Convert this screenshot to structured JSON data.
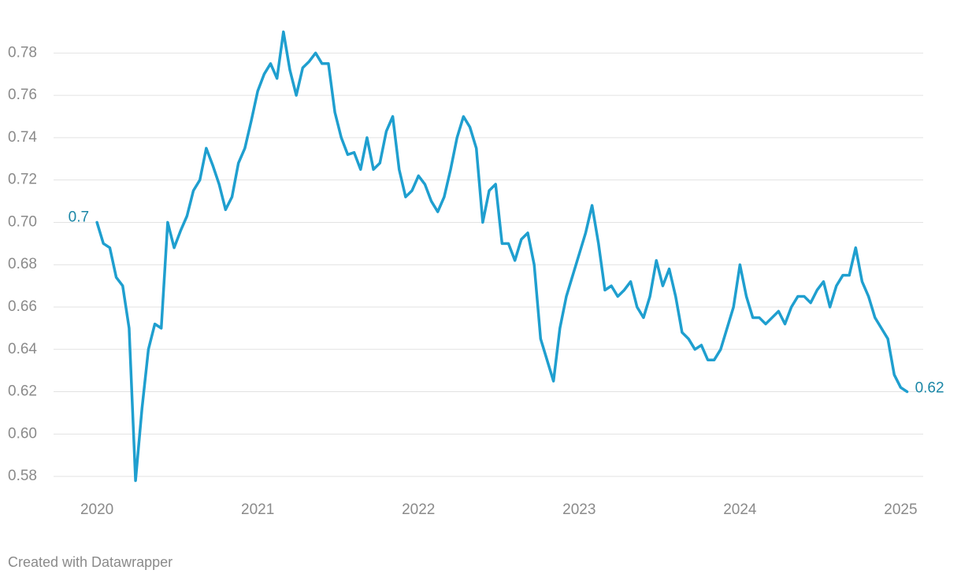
{
  "chart_data": {
    "type": "line",
    "x": [
      2020.0,
      2020.04,
      2020.08,
      2020.12,
      2020.16,
      2020.2,
      2020.24,
      2020.28,
      2020.32,
      2020.36,
      2020.4,
      2020.44,
      2020.48,
      2020.52,
      2020.56,
      2020.6,
      2020.64,
      2020.68,
      2020.72,
      2020.76,
      2020.8,
      2020.84,
      2020.88,
      2020.92,
      2020.96,
      2021.0,
      2021.04,
      2021.08,
      2021.12,
      2021.16,
      2021.2,
      2021.24,
      2021.28,
      2021.32,
      2021.36,
      2021.4,
      2021.44,
      2021.48,
      2021.52,
      2021.56,
      2021.6,
      2021.64,
      2021.68,
      2021.72,
      2021.76,
      2021.8,
      2021.84,
      2021.88,
      2021.92,
      2021.96,
      2022.0,
      2022.04,
      2022.08,
      2022.12,
      2022.16,
      2022.2,
      2022.24,
      2022.28,
      2022.32,
      2022.36,
      2022.4,
      2022.44,
      2022.48,
      2022.52,
      2022.56,
      2022.6,
      2022.64,
      2022.68,
      2022.72,
      2022.76,
      2022.8,
      2022.84,
      2022.88,
      2022.92,
      2022.96,
      2023.0,
      2023.04,
      2023.08,
      2023.12,
      2023.16,
      2023.2,
      2023.24,
      2023.28,
      2023.32,
      2023.36,
      2023.4,
      2023.44,
      2023.48,
      2023.52,
      2023.56,
      2023.6,
      2023.64,
      2023.68,
      2023.72,
      2023.76,
      2023.8,
      2023.84,
      2023.88,
      2023.92,
      2023.96,
      2024.0,
      2024.04,
      2024.08,
      2024.12,
      2024.16,
      2024.2,
      2024.24,
      2024.28,
      2024.32,
      2024.36,
      2024.4,
      2024.44,
      2024.48,
      2024.52,
      2024.56,
      2024.6,
      2024.64,
      2024.68,
      2024.72,
      2024.76,
      2024.8,
      2024.84,
      2024.88,
      2024.92,
      2024.96,
      2025.0,
      2025.04
    ],
    "series": [
      {
        "color": "#1f9fcf",
        "label_color": "#1a86a6",
        "values": [
          0.7,
          0.69,
          0.688,
          0.674,
          0.67,
          0.65,
          0.578,
          0.612,
          0.64,
          0.652,
          0.65,
          0.7,
          0.688,
          0.696,
          0.703,
          0.715,
          0.72,
          0.735,
          0.727,
          0.718,
          0.706,
          0.712,
          0.728,
          0.735,
          0.748,
          0.762,
          0.77,
          0.775,
          0.768,
          0.79,
          0.772,
          0.76,
          0.773,
          0.776,
          0.78,
          0.775,
          0.775,
          0.752,
          0.74,
          0.732,
          0.733,
          0.725,
          0.74,
          0.725,
          0.728,
          0.743,
          0.75,
          0.725,
          0.712,
          0.715,
          0.722,
          0.718,
          0.71,
          0.705,
          0.712,
          0.725,
          0.74,
          0.75,
          0.745,
          0.735,
          0.7,
          0.715,
          0.718,
          0.69,
          0.69,
          0.682,
          0.692,
          0.695,
          0.68,
          0.645,
          0.635,
          0.625,
          0.65,
          0.665,
          0.675,
          0.685,
          0.695,
          0.708,
          0.69,
          0.668,
          0.67,
          0.665,
          0.668,
          0.672,
          0.66,
          0.655,
          0.665,
          0.682,
          0.67,
          0.678,
          0.665,
          0.648,
          0.645,
          0.64,
          0.642,
          0.635,
          0.635,
          0.64,
          0.65,
          0.66,
          0.68,
          0.665,
          0.655,
          0.655,
          0.652,
          0.655,
          0.658,
          0.652,
          0.66,
          0.665,
          0.665,
          0.662,
          0.668,
          0.672,
          0.66,
          0.67,
          0.675,
          0.675,
          0.688,
          0.672,
          0.665,
          0.655,
          0.65,
          0.645,
          0.628,
          0.622,
          0.62
        ]
      }
    ],
    "end_labels": true,
    "xlim": [
      2019.73,
      2025.14
    ],
    "xticks": [
      2020,
      2021,
      2022,
      2023,
      2024,
      2025
    ],
    "ylim": [
      0.57,
      0.795
    ],
    "yticks": [
      0.58,
      {
        "value": 0.6,
        "label": "0.60"
      },
      0.62,
      0.64,
      0.66,
      0.68,
      {
        "value": 0.7,
        "label": "0.70"
      },
      0.72,
      0.74,
      0.76,
      0.78
    ],
    "grid": true,
    "credit": "Created with Datawrapper"
  }
}
